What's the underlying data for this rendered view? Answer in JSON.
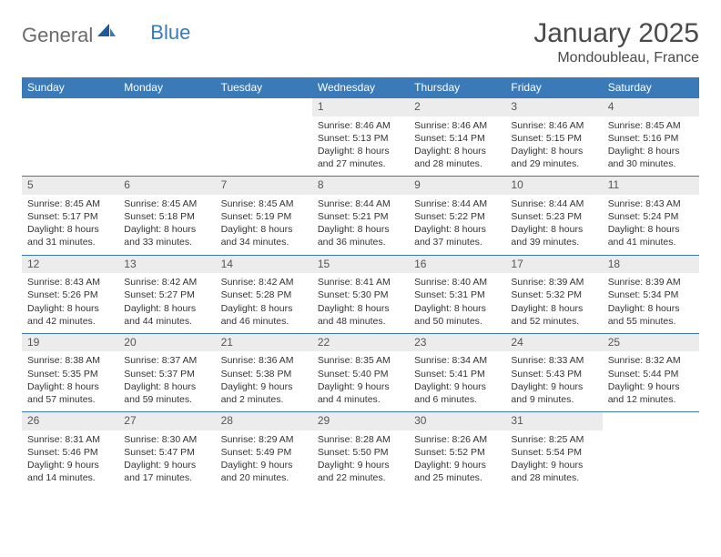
{
  "brand": {
    "part1": "General",
    "part2": "Blue"
  },
  "title": "January 2025",
  "location": "Mondoubleau, France",
  "colors": {
    "header_bg": "#3a7ab8",
    "header_text": "#ffffff",
    "daynum_bg": "#ececec",
    "row_border": "#3a7ab8",
    "body_text": "#333333",
    "logo_grey": "#6b6b6b",
    "logo_blue": "#3a7ab8"
  },
  "weekdays": [
    "Sunday",
    "Monday",
    "Tuesday",
    "Wednesday",
    "Thursday",
    "Friday",
    "Saturday"
  ],
  "weeks": [
    [
      {
        "n": "",
        "sr": "",
        "ss": "",
        "dl": ""
      },
      {
        "n": "",
        "sr": "",
        "ss": "",
        "dl": ""
      },
      {
        "n": "",
        "sr": "",
        "ss": "",
        "dl": ""
      },
      {
        "n": "1",
        "sr": "8:46 AM",
        "ss": "5:13 PM",
        "dl": "8 hours and 27 minutes."
      },
      {
        "n": "2",
        "sr": "8:46 AM",
        "ss": "5:14 PM",
        "dl": "8 hours and 28 minutes."
      },
      {
        "n": "3",
        "sr": "8:46 AM",
        "ss": "5:15 PM",
        "dl": "8 hours and 29 minutes."
      },
      {
        "n": "4",
        "sr": "8:45 AM",
        "ss": "5:16 PM",
        "dl": "8 hours and 30 minutes."
      }
    ],
    [
      {
        "n": "5",
        "sr": "8:45 AM",
        "ss": "5:17 PM",
        "dl": "8 hours and 31 minutes."
      },
      {
        "n": "6",
        "sr": "8:45 AM",
        "ss": "5:18 PM",
        "dl": "8 hours and 33 minutes."
      },
      {
        "n": "7",
        "sr": "8:45 AM",
        "ss": "5:19 PM",
        "dl": "8 hours and 34 minutes."
      },
      {
        "n": "8",
        "sr": "8:44 AM",
        "ss": "5:21 PM",
        "dl": "8 hours and 36 minutes."
      },
      {
        "n": "9",
        "sr": "8:44 AM",
        "ss": "5:22 PM",
        "dl": "8 hours and 37 minutes."
      },
      {
        "n": "10",
        "sr": "8:44 AM",
        "ss": "5:23 PM",
        "dl": "8 hours and 39 minutes."
      },
      {
        "n": "11",
        "sr": "8:43 AM",
        "ss": "5:24 PM",
        "dl": "8 hours and 41 minutes."
      }
    ],
    [
      {
        "n": "12",
        "sr": "8:43 AM",
        "ss": "5:26 PM",
        "dl": "8 hours and 42 minutes."
      },
      {
        "n": "13",
        "sr": "8:42 AM",
        "ss": "5:27 PM",
        "dl": "8 hours and 44 minutes."
      },
      {
        "n": "14",
        "sr": "8:42 AM",
        "ss": "5:28 PM",
        "dl": "8 hours and 46 minutes."
      },
      {
        "n": "15",
        "sr": "8:41 AM",
        "ss": "5:30 PM",
        "dl": "8 hours and 48 minutes."
      },
      {
        "n": "16",
        "sr": "8:40 AM",
        "ss": "5:31 PM",
        "dl": "8 hours and 50 minutes."
      },
      {
        "n": "17",
        "sr": "8:39 AM",
        "ss": "5:32 PM",
        "dl": "8 hours and 52 minutes."
      },
      {
        "n": "18",
        "sr": "8:39 AM",
        "ss": "5:34 PM",
        "dl": "8 hours and 55 minutes."
      }
    ],
    [
      {
        "n": "19",
        "sr": "8:38 AM",
        "ss": "5:35 PM",
        "dl": "8 hours and 57 minutes."
      },
      {
        "n": "20",
        "sr": "8:37 AM",
        "ss": "5:37 PM",
        "dl": "8 hours and 59 minutes."
      },
      {
        "n": "21",
        "sr": "8:36 AM",
        "ss": "5:38 PM",
        "dl": "9 hours and 2 minutes."
      },
      {
        "n": "22",
        "sr": "8:35 AM",
        "ss": "5:40 PM",
        "dl": "9 hours and 4 minutes."
      },
      {
        "n": "23",
        "sr": "8:34 AM",
        "ss": "5:41 PM",
        "dl": "9 hours and 6 minutes."
      },
      {
        "n": "24",
        "sr": "8:33 AM",
        "ss": "5:43 PM",
        "dl": "9 hours and 9 minutes."
      },
      {
        "n": "25",
        "sr": "8:32 AM",
        "ss": "5:44 PM",
        "dl": "9 hours and 12 minutes."
      }
    ],
    [
      {
        "n": "26",
        "sr": "8:31 AM",
        "ss": "5:46 PM",
        "dl": "9 hours and 14 minutes."
      },
      {
        "n": "27",
        "sr": "8:30 AM",
        "ss": "5:47 PM",
        "dl": "9 hours and 17 minutes."
      },
      {
        "n": "28",
        "sr": "8:29 AM",
        "ss": "5:49 PM",
        "dl": "9 hours and 20 minutes."
      },
      {
        "n": "29",
        "sr": "8:28 AM",
        "ss": "5:50 PM",
        "dl": "9 hours and 22 minutes."
      },
      {
        "n": "30",
        "sr": "8:26 AM",
        "ss": "5:52 PM",
        "dl": "9 hours and 25 minutes."
      },
      {
        "n": "31",
        "sr": "8:25 AM",
        "ss": "5:54 PM",
        "dl": "9 hours and 28 minutes."
      },
      {
        "n": "",
        "sr": "",
        "ss": "",
        "dl": ""
      }
    ]
  ],
  "labels": {
    "sunrise": "Sunrise: ",
    "sunset": "Sunset: ",
    "daylight": "Daylight: "
  }
}
